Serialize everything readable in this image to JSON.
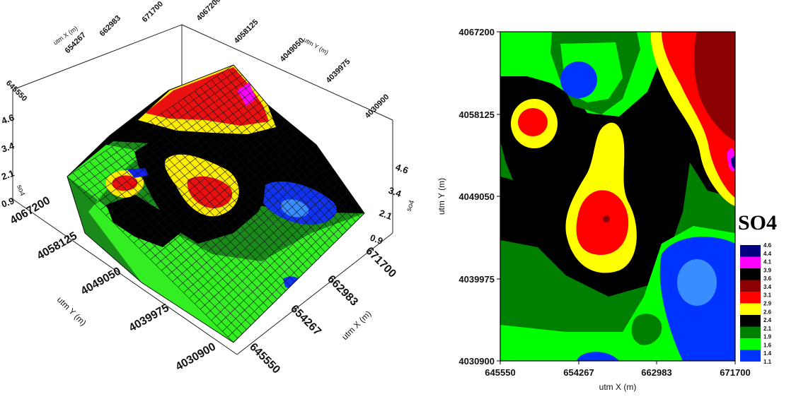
{
  "chart_data": [
    {
      "type": "surface",
      "xlabel": "utm X (m)",
      "ylabel": "utm Y (m)",
      "zlabel": "so4",
      "x_ticks": [
        "645550",
        "654267",
        "662983",
        "671700"
      ],
      "y_ticks": [
        "4030900",
        "4039975",
        "4049050",
        "4058125",
        "4067200"
      ],
      "z_ticks": [
        "0.9",
        "2.1",
        "3.4",
        "4.6"
      ],
      "xlim": [
        645550,
        671700
      ],
      "ylim": [
        4030900,
        4067200
      ],
      "zlim": [
        0.9,
        4.6
      ]
    },
    {
      "type": "contour",
      "xlabel": "utm X (m)",
      "ylabel": "utm Y (m)",
      "x_ticks": [
        "645550",
        "654267",
        "662983",
        "671700"
      ],
      "y_ticks": [
        "4030900",
        "4039975",
        "4049050",
        "4058125",
        "4067200"
      ],
      "xlim": [
        645550,
        671700
      ],
      "ylim": [
        4030900,
        4067200
      ],
      "legend_title": "SO4",
      "levels": [
        "4.6",
        "4.4",
        "4.1",
        "3.9",
        "3.6",
        "3.4",
        "3.1",
        "2.9",
        "2.6",
        "2.4",
        "2.1",
        "1.9",
        "1.6",
        "1.4",
        "1.1"
      ],
      "colors": {
        "very_low": "#0033ff",
        "low": "#3a8dff",
        "green_light": "#00ff00",
        "green_dark": "#008000",
        "black": "#000000",
        "yellow": "#ffff00",
        "red": "#ff0000",
        "dark_red": "#8b0000",
        "magenta": "#ff00ff",
        "navy": "#000080"
      }
    }
  ]
}
